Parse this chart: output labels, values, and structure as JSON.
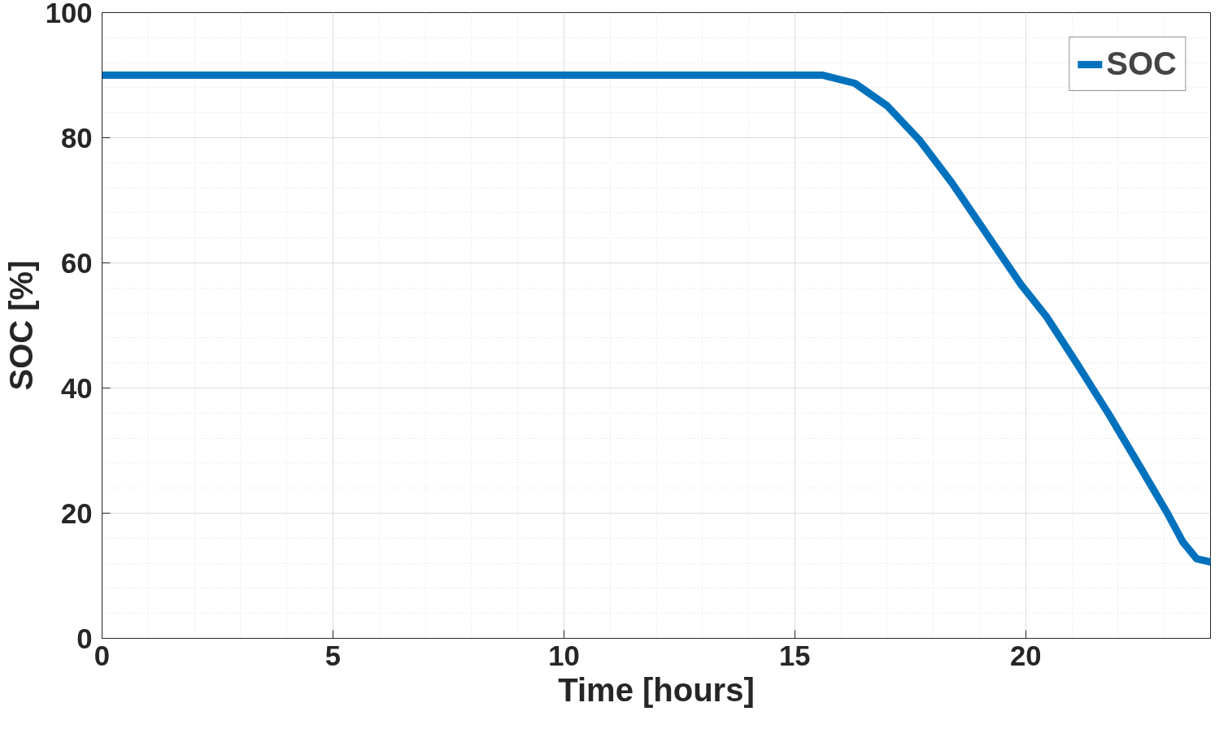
{
  "chart_data": {
    "type": "line",
    "xlabel": "Time [hours]",
    "ylabel": "SOC [%]",
    "x": [
      0,
      5,
      10,
      15,
      15.6,
      16.3,
      17.0,
      17.7,
      18.4,
      19.1,
      19.9,
      20.45,
      21.1,
      21.8,
      22.5,
      23.05,
      23.4,
      23.7,
      24
    ],
    "series": [
      {
        "name": "SOC",
        "color": "#0072bd",
        "values": [
          90,
          90,
          90,
          90,
          90,
          88.7,
          85.1,
          79.6,
          72.8,
          65.2,
          56.5,
          51.4,
          44.0,
          35.8,
          27.1,
          20.2,
          15.4,
          12.7,
          12.2
        ]
      }
    ],
    "xlim": [
      0,
      24
    ],
    "xticks": [
      0,
      5,
      10,
      15,
      20
    ],
    "ylim": [
      0,
      100
    ],
    "yticks": [
      0,
      20,
      40,
      60,
      80,
      100
    ],
    "grid": true,
    "legend": "top right",
    "line_style": "solid"
  }
}
